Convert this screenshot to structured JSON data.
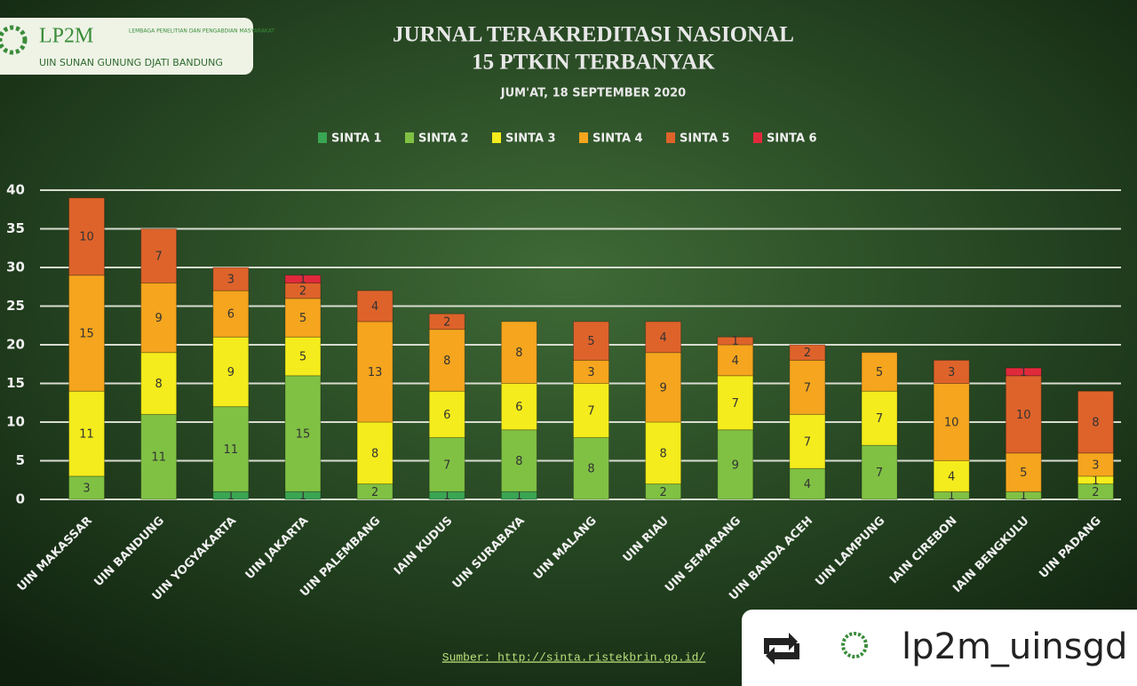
{
  "header": {
    "logo": "LP2M",
    "logo_sub": "LEMBAGA PENELITIAN DAN PENGABDIAN MASYARAKAT",
    "institution": "UIN SUNAN GUNUNG DJATI BANDUNG"
  },
  "source": "Sumber: http://sinta.ristekbrin.go.id/",
  "repost": "lp2m_uinsgd",
  "chart_data": {
    "type": "stacked_bar",
    "title": [
      "JURNAL TERAKREDITASI NASIONAL",
      "15 PTKIN TERBANYAK"
    ],
    "subtitle": "JUM'AT, 18 SEPTEMBER 2020",
    "categories": [
      "UIN MAKASSAR",
      "UIN BANDUNG",
      "UIN YOGYAKARTA",
      "UIN JAKARTA",
      "UIN PALEMBANG",
      "IAIN KUDUS",
      "UIN SURABAYA",
      "UIN MALANG",
      "UIN RIAU",
      "UIN SEMARANG",
      "UIN BANDA ACEH",
      "UIN LAMPUNG",
      "IAIN CIREBON",
      "IAIN BENGKULU",
      "UIN PADANG"
    ],
    "series": [
      {
        "name": "SINTA 1",
        "color": "#3aa552",
        "values": [
          0,
          0,
          1,
          1,
          0,
          1,
          1,
          0,
          0,
          0,
          0,
          0,
          0,
          0,
          0
        ]
      },
      {
        "name": "SINTA 2",
        "color": "#80c144",
        "values": [
          3,
          11,
          11,
          15,
          2,
          7,
          8,
          8,
          2,
          9,
          4,
          7,
          1,
          1,
          2
        ]
      },
      {
        "name": "SINTA 3",
        "color": "#f4ec1c",
        "values": [
          11,
          8,
          9,
          5,
          8,
          6,
          6,
          7,
          8,
          7,
          7,
          7,
          4,
          0,
          1
        ]
      },
      {
        "name": "SINTA 4",
        "color": "#f5a51e",
        "values": [
          15,
          9,
          6,
          5,
          13,
          8,
          8,
          3,
          9,
          4,
          7,
          5,
          10,
          5,
          3
        ]
      },
      {
        "name": "SINTA 5",
        "color": "#de632b",
        "values": [
          10,
          7,
          3,
          2,
          4,
          2,
          0,
          5,
          4,
          1,
          2,
          0,
          3,
          10,
          8
        ]
      },
      {
        "name": "SINTA 6",
        "color": "#e02a3c",
        "values": [
          0,
          0,
          0,
          1,
          0,
          0,
          0,
          0,
          0,
          0,
          0,
          0,
          0,
          1,
          0
        ]
      }
    ],
    "ylim": [
      0,
      40
    ],
    "yticks": [
      0,
      5,
      10,
      15,
      20,
      25,
      30,
      35,
      40
    ],
    "grid": true,
    "legend": "top"
  }
}
